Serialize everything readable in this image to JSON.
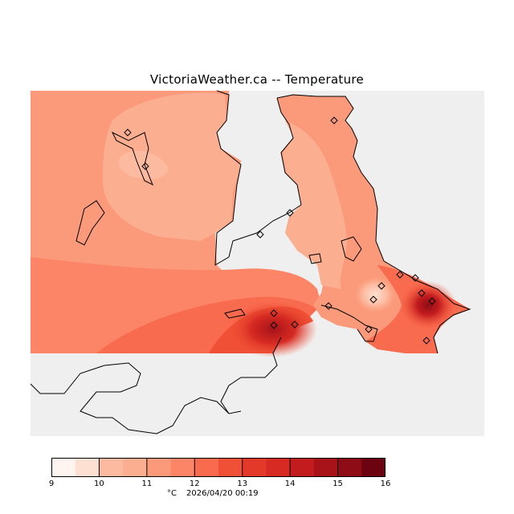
{
  "title": "VictoriaWeather.ca -- Temperature",
  "legend": {
    "ticks": [
      "9",
      "10",
      "11",
      "12",
      "13",
      "14",
      "15",
      "16"
    ],
    "unit": "°C",
    "colors": [
      "#fff5f0",
      "#fee0d2",
      "#fcbba1",
      "#fcae91",
      "#fb9a7a",
      "#fb8566",
      "#f96b4f",
      "#f05035",
      "#e3392a",
      "#d62a23",
      "#c31c1e",
      "#a8131a",
      "#8e0c16",
      "#6b0410"
    ]
  },
  "timestamp": "2026/04/20 00:19",
  "colors": {
    "no_data": "#efefef",
    "coastline": "#000000"
  }
}
